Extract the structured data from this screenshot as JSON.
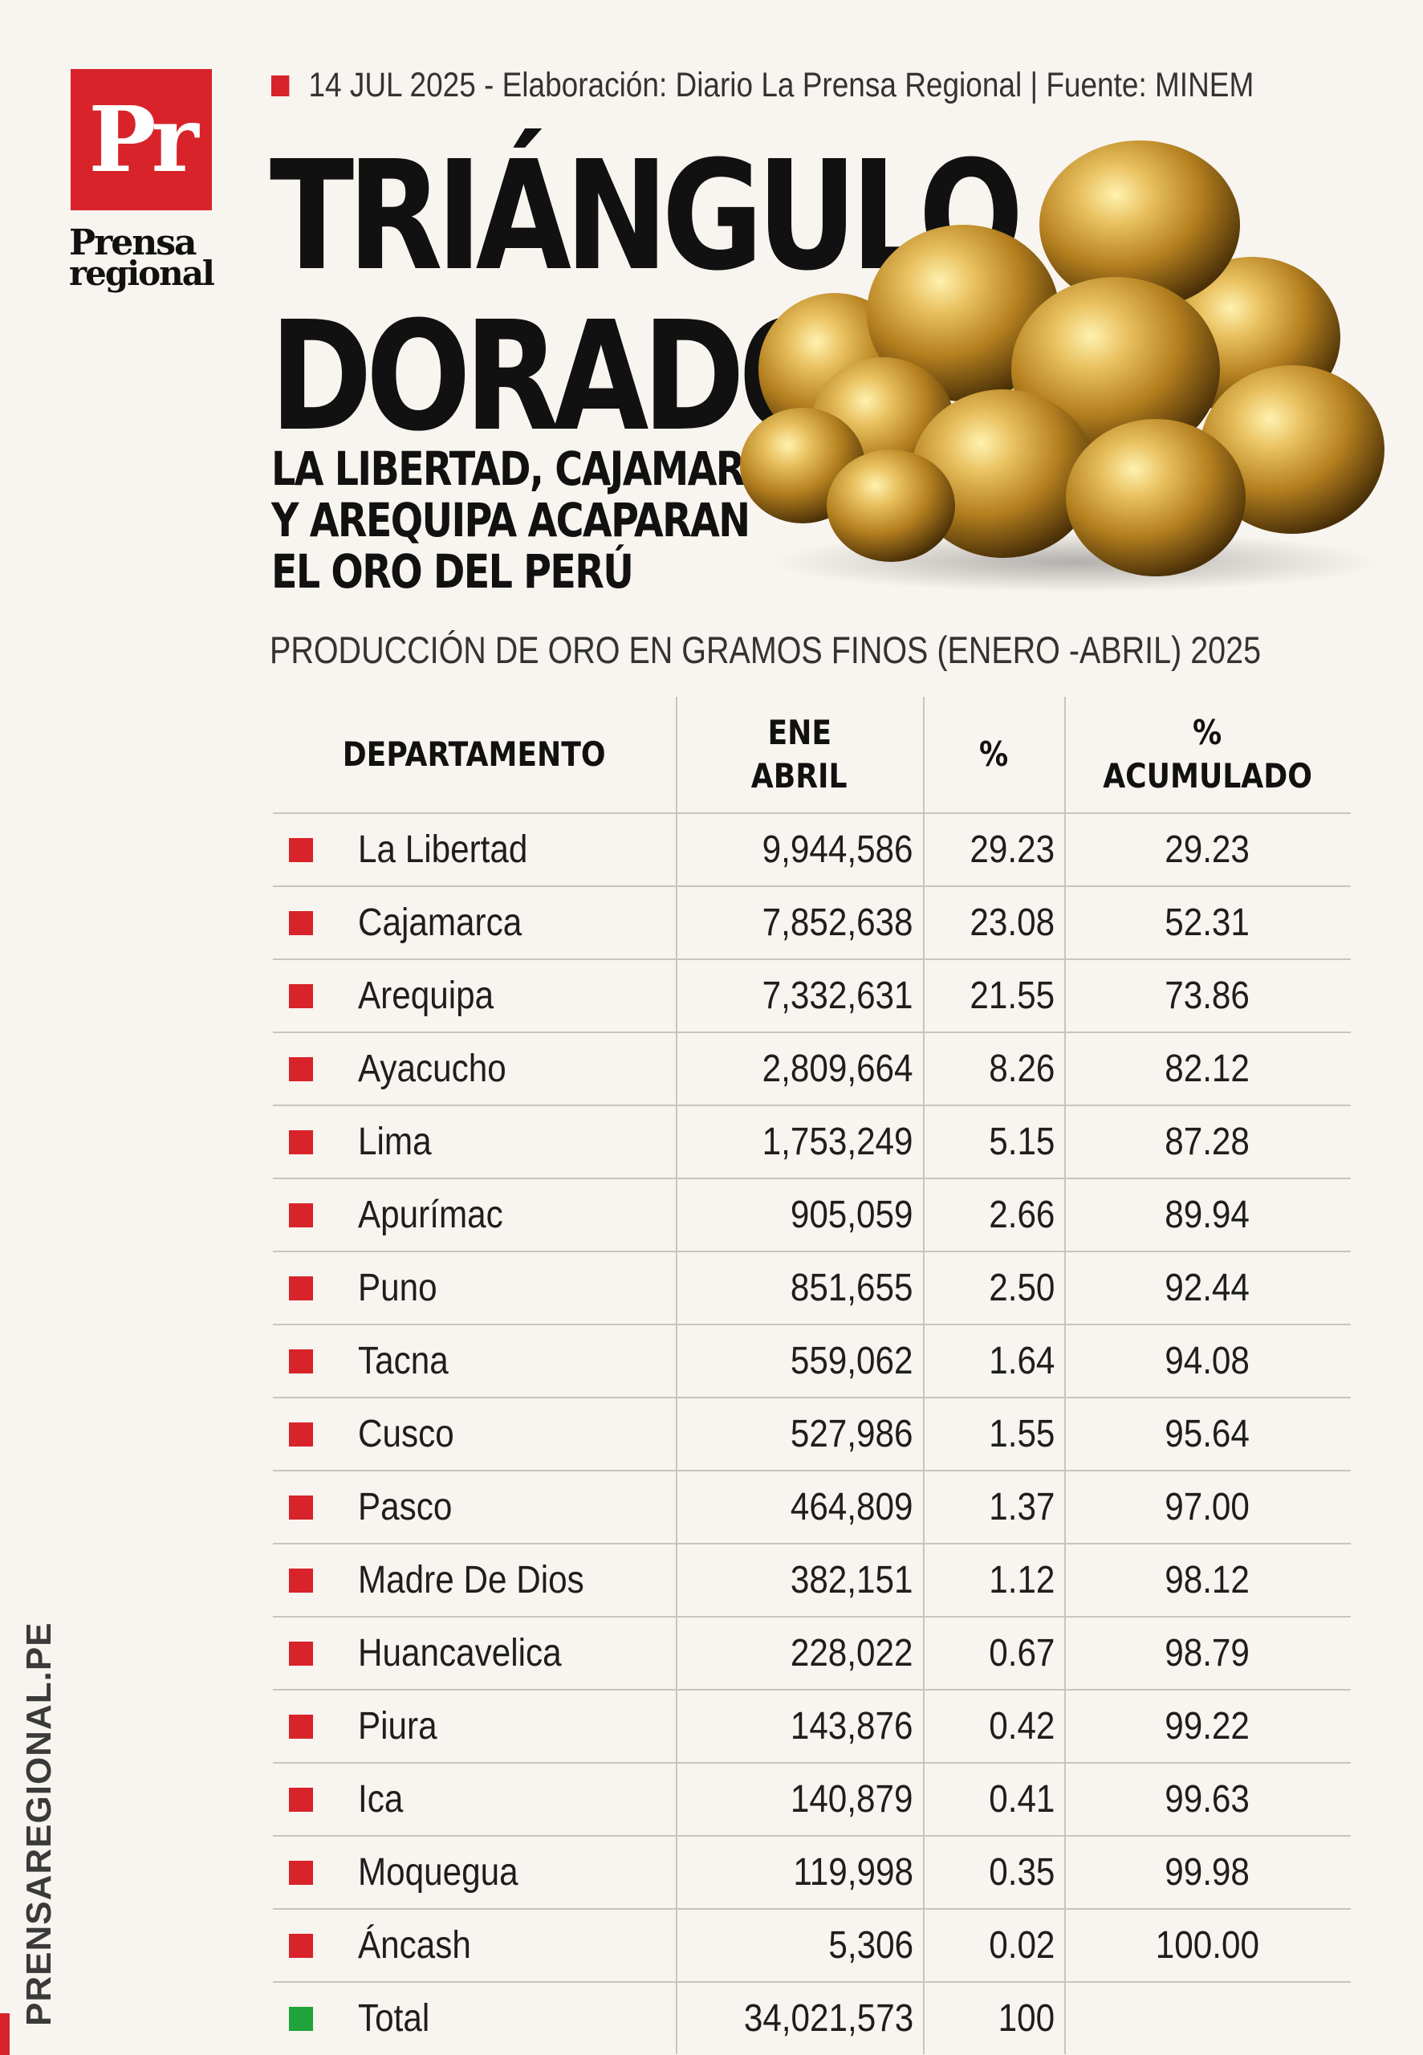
{
  "brand": {
    "logo_text": "Pr",
    "name_line1": "Prensa",
    "name_line2": "regional",
    "website": "PRENSAREGIONAL.PE"
  },
  "meta": "14 JUL 2025 -  Elaboración: Diario La Prensa Regional | Fuente: MINEM",
  "headline": {
    "line1": "TRIÁNGULO",
    "line2": "DORADO"
  },
  "subtitle": {
    "line1": "LA LIBERTAD, CAJAMARCA",
    "line2": "Y AREQUIPA ACAPARAN",
    "line3": "EL ORO DEL PERÚ"
  },
  "chart_data": {
    "type": "table",
    "title": "PRODUCCIÓN DE ORO EN GRAMOS FINOS (ENERO -ABRIL) 2025",
    "columns": [
      "DEPARTAMENTO",
      "ENE ABRIL",
      "%",
      "% ACUMULADO"
    ],
    "header": {
      "departamento": "DEPARTAMENTO",
      "ene": "ENE",
      "abril": "ABRIL",
      "pct": "%",
      "acum_pct": "%",
      "acum": "ACUMULADO"
    },
    "rows": [
      {
        "departamento": "La Libertad",
        "ene_abril": "9,944,586",
        "pct": "29.23",
        "acumulado": "29.23"
      },
      {
        "departamento": "Cajamarca",
        "ene_abril": "7,852,638",
        "pct": "23.08",
        "acumulado": "52.31"
      },
      {
        "departamento": "Arequipa",
        "ene_abril": "7,332,631",
        "pct": "21.55",
        "acumulado": "73.86"
      },
      {
        "departamento": "Ayacucho",
        "ene_abril": "2,809,664",
        "pct": "8.26",
        "acumulado": "82.12"
      },
      {
        "departamento": "Lima",
        "ene_abril": "1,753,249",
        "pct": "5.15",
        "acumulado": "87.28"
      },
      {
        "departamento": "Apurímac",
        "ene_abril": "905,059",
        "pct": "2.66",
        "acumulado": "89.94"
      },
      {
        "departamento": "Puno",
        "ene_abril": "851,655",
        "pct": "2.50",
        "acumulado": "92.44"
      },
      {
        "departamento": "Tacna",
        "ene_abril": "559,062",
        "pct": "1.64",
        "acumulado": "94.08"
      },
      {
        "departamento": "Cusco",
        "ene_abril": "527,986",
        "pct": "1.55",
        "acumulado": "95.64"
      },
      {
        "departamento": "Pasco",
        "ene_abril": "464,809",
        "pct": "1.37",
        "acumulado": "97.00"
      },
      {
        "departamento": "Madre De Dios",
        "ene_abril": "382,151",
        "pct": "1.12",
        "acumulado": "98.12"
      },
      {
        "departamento": "Huancavelica",
        "ene_abril": "228,022",
        "pct": "0.67",
        "acumulado": "98.79"
      },
      {
        "departamento": "Piura",
        "ene_abril": "143,876",
        "pct": "0.42",
        "acumulado": "99.22"
      },
      {
        "departamento": "Ica",
        "ene_abril": "140,879",
        "pct": "0.41",
        "acumulado": "99.63"
      },
      {
        "departamento": "Moquegua",
        "ene_abril": "119,998",
        "pct": "0.35",
        "acumulado": "99.98"
      },
      {
        "departamento": "Áncash",
        "ene_abril": "5,306",
        "pct": "0.02",
        "acumulado": "100.00"
      }
    ],
    "total": {
      "departamento": "Total",
      "ene_abril": "34,021,573",
      "pct": "100",
      "acumulado": ""
    }
  },
  "colors": {
    "accent_red": "#d8232a",
    "total_green": "#1fa33a",
    "background": "#f8f4ef",
    "gold": "#c9962c"
  }
}
